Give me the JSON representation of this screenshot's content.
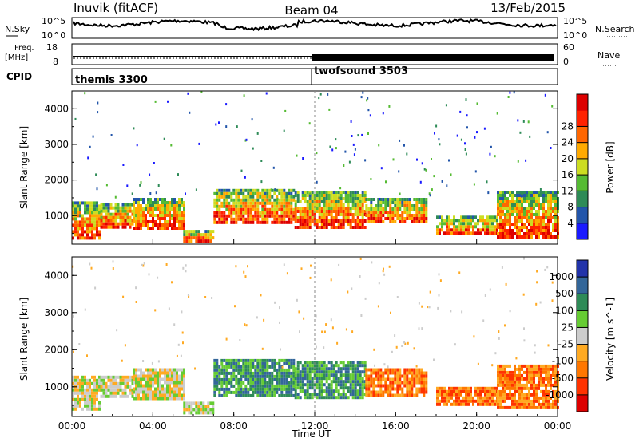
{
  "header": {
    "station": "Inuvik (fitACF)",
    "beam": "Beam 04",
    "date": "13/Feb/2015"
  },
  "top_panels": {
    "nsky_label": "N.Sky",
    "nsky_ticks": [
      "10^5",
      "10^0"
    ],
    "nsearch_label": "N.Search",
    "nsearch_ticks": [
      "10^5",
      "10^0"
    ],
    "freq_label": "Freq.",
    "freq_unit": "[MHz]",
    "freq_ticks": [
      "18",
      "8"
    ],
    "nave_label": "Nave",
    "nave_ticks": [
      "60",
      "0"
    ],
    "cpid_label": "CPID",
    "cpid_segments": [
      {
        "name": "themis 3300",
        "start_hour": 0,
        "end_hour": 12
      },
      {
        "name": "twofsound 3503",
        "start_hour": 12,
        "end_hour": 24
      }
    ]
  },
  "time_axis": {
    "label": "Time UT",
    "ticks": [
      "00:00",
      "04:00",
      "08:00",
      "12:00",
      "16:00",
      "20:00",
      "00:00"
    ]
  },
  "chart_data": [
    {
      "type": "heatmap",
      "name": "power",
      "ylabel": "Slant Range [km]",
      "yticks": [
        "1000",
        "2000",
        "3000",
        "4000"
      ],
      "ylim": [
        200,
        4500
      ],
      "xlim_hours": [
        0,
        24
      ],
      "colorbar": {
        "label": "Power [dB]",
        "ticks": [
          "4",
          "8",
          "12",
          "16",
          "20",
          "24",
          "28"
        ],
        "colors": [
          "#1a1aff",
          "#2255aa",
          "#2e8b57",
          "#55bb33",
          "#ccdd22",
          "#ffaa00",
          "#ff6600",
          "#ff2200",
          "#dd0000"
        ]
      },
      "bands": [
        {
          "t0": 0.0,
          "t1": 1.4,
          "r0": 350,
          "r1": 1400
        },
        {
          "t0": 1.4,
          "t1": 3.0,
          "r0": 700,
          "r1": 1350
        },
        {
          "t0": 3.0,
          "t1": 5.5,
          "r0": 650,
          "r1": 1500
        },
        {
          "t0": 5.5,
          "t1": 7.0,
          "r0": 300,
          "r1": 600
        },
        {
          "t0": 7.0,
          "t1": 11.0,
          "r0": 800,
          "r1": 1750
        },
        {
          "t0": 11.0,
          "t1": 14.5,
          "r0": 700,
          "r1": 1700
        },
        {
          "t0": 14.5,
          "t1": 17.5,
          "r0": 800,
          "r1": 1500
        },
        {
          "t0": 18.0,
          "t1": 21.0,
          "r0": 500,
          "r1": 1000
        },
        {
          "t0": 21.0,
          "t1": 24.0,
          "r0": 400,
          "r1": 1700
        }
      ]
    },
    {
      "type": "heatmap",
      "name": "velocity",
      "ylabel": "Slant Range [km]",
      "yticks": [
        "1000",
        "2000",
        "3000",
        "4000"
      ],
      "ylim": [
        200,
        4500
      ],
      "xlim_hours": [
        0,
        24
      ],
      "colorbar": {
        "label": "Velocity [m s^-1]",
        "ticks": [
          "1000",
          "500",
          "100",
          "25",
          "-25",
          "-100",
          "-500",
          "-1000"
        ],
        "colors": [
          "#2233aa",
          "#336699",
          "#2e8b57",
          "#66cc33",
          "#cccccc",
          "#ffaa22",
          "#ff7700",
          "#ff3300",
          "#dd0000"
        ]
      },
      "bands": [
        {
          "t0": 0.0,
          "t1": 1.4,
          "r0": 400,
          "r1": 1300
        },
        {
          "t0": 1.4,
          "t1": 3.0,
          "r0": 750,
          "r1": 1300
        },
        {
          "t0": 3.0,
          "t1": 5.5,
          "r0": 700,
          "r1": 1500
        },
        {
          "t0": 5.5,
          "t1": 7.0,
          "r0": 300,
          "r1": 600
        },
        {
          "t0": 7.0,
          "t1": 11.0,
          "r0": 800,
          "r1": 1750
        },
        {
          "t0": 11.0,
          "t1": 14.5,
          "r0": 700,
          "r1": 1700
        },
        {
          "t0": 14.5,
          "t1": 17.5,
          "r0": 800,
          "r1": 1500
        },
        {
          "t0": 18.0,
          "t1": 21.0,
          "r0": 500,
          "r1": 1000
        },
        {
          "t0": 21.0,
          "t1": 24.0,
          "r0": 400,
          "r1": 1600
        }
      ]
    }
  ]
}
